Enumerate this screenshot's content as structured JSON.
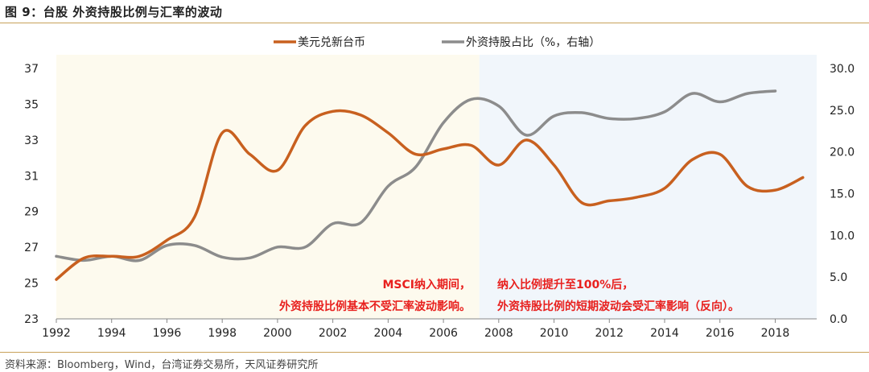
{
  "header": {
    "title": "图 9：台股 外资持股比例与汇率的波动"
  },
  "footer": {
    "source": "资料来源：Bloomberg，Wind，台湾证券交易所，天风证券研究所"
  },
  "colors": {
    "fx": "#c8601f",
    "foreign": "#8c8c8c",
    "shade_left": "#fdfaee",
    "shade_right": "#f1f6fb",
    "annotation": "#e8201e"
  },
  "chart_data": {
    "type": "line",
    "title": "",
    "x_ticks": [
      "1992",
      "1994",
      "1996",
      "1998",
      "2000",
      "2002",
      "2004",
      "2006",
      "2008",
      "2010",
      "2012",
      "2014",
      "2016",
      "2018"
    ],
    "y_left": {
      "lim": [
        23,
        37
      ],
      "ticks": [
        "37",
        "35",
        "33",
        "31",
        "29",
        "27",
        "25",
        "23"
      ]
    },
    "y_right": {
      "lim": [
        0,
        30
      ],
      "ticks": [
        "30.0",
        "25.0",
        "20.0",
        "15.0",
        "10.0",
        "5.0",
        "0.0"
      ]
    },
    "legend_position": "top-center",
    "series": [
      {
        "name": "美元兑新台币",
        "axis": "left",
        "color": "#c8601f",
        "x": [
          1992,
          1993,
          1994,
          1995,
          1996,
          1997,
          1998,
          1999,
          2000,
          2001,
          2002,
          2003,
          2004,
          2005,
          2006,
          2007,
          2008,
          2009,
          2010,
          2011,
          2012,
          2013,
          2014,
          2015,
          2016,
          2017,
          2018,
          2019
        ],
        "values": [
          25.2,
          26.4,
          26.5,
          26.5,
          27.4,
          28.7,
          33.4,
          32.2,
          31.3,
          33.8,
          34.6,
          34.4,
          33.4,
          32.2,
          32.5,
          32.7,
          31.6,
          33.0,
          31.6,
          29.5,
          29.6,
          29.8,
          30.3,
          31.9,
          32.2,
          30.4,
          30.2,
          30.9
        ]
      },
      {
        "name": "外资持股占比（%，右轴）",
        "axis": "right",
        "color": "#8c8c8c",
        "x": [
          1992,
          1993,
          1994,
          1995,
          1996,
          1997,
          1998,
          1999,
          2000,
          2001,
          2002,
          2003,
          2004,
          2005,
          2006,
          2007,
          2008,
          2009,
          2010,
          2011,
          2012,
          2013,
          2014,
          2015,
          2016,
          2017,
          2018
        ],
        "values": [
          7.5,
          7.0,
          7.5,
          7.0,
          8.8,
          8.8,
          7.4,
          7.3,
          8.6,
          8.6,
          11.4,
          11.5,
          15.9,
          18.2,
          23.5,
          26.3,
          25.5,
          22.0,
          24.3,
          24.7,
          24.0,
          24.0,
          24.8,
          27.0,
          26.0,
          27.0,
          27.3
        ]
      }
    ],
    "shaded_regions": [
      {
        "x_range": [
          1992,
          2007.3
        ],
        "label": "MSCI纳入期间"
      },
      {
        "x_range": [
          2007.3,
          2019.5
        ],
        "label": "纳入比例提升至100%后"
      }
    ],
    "annotations": [
      {
        "line1": "MSCI纳入期间，",
        "line2": "外资持股比例基本不受汇率波动影响。"
      },
      {
        "line1": "纳入比例提升至100%后，",
        "line2": "外资持股比例的短期波动会受汇率影响（反向）。"
      }
    ]
  }
}
